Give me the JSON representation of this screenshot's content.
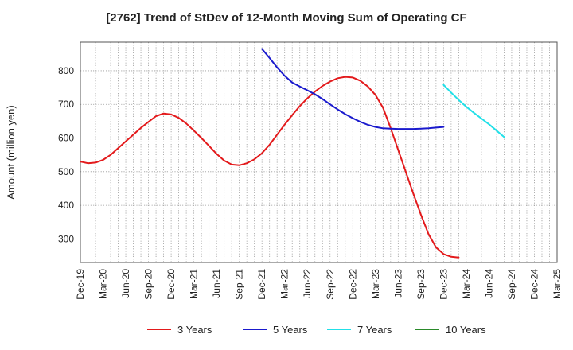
{
  "chart_data": {
    "type": "line",
    "title": "[2762]  Trend of StDev of 12-Month Moving Sum of Operating CF",
    "ylabel": "Amount (million yen)",
    "xlabel": "",
    "ylim": [
      230,
      885
    ],
    "yticks": [
      300,
      400,
      500,
      600,
      700,
      800
    ],
    "grid": true,
    "legend_position": "bottom",
    "x_ticks": [
      "Dec-19",
      "Mar-20",
      "Jun-20",
      "Sep-20",
      "Dec-20",
      "Mar-21",
      "Jun-21",
      "Sep-21",
      "Dec-21",
      "Mar-22",
      "Jun-22",
      "Sep-22",
      "Dec-22",
      "Mar-23",
      "Jun-23",
      "Sep-23",
      "Dec-23",
      "Mar-24",
      "Jun-24",
      "Sep-24",
      "Dec-24",
      "Mar-25"
    ],
    "series": [
      {
        "name": "3 Years",
        "color": "#e31a1c",
        "start_index": 0,
        "values": [
          530,
          525,
          527,
          535,
          550,
          570,
          590,
          610,
          630,
          648,
          665,
          673,
          670,
          660,
          643,
          622,
          600,
          577,
          553,
          533,
          521,
          519,
          525,
          537,
          555,
          580,
          610,
          640,
          668,
          695,
          718,
          738,
          755,
          768,
          778,
          782,
          780,
          770,
          753,
          728,
          690,
          630,
          565,
          500,
          435,
          372,
          315,
          275,
          255,
          247,
          245
        ]
      },
      {
        "name": "5 Years",
        "color": "#1a1acd",
        "start_index": 24,
        "values": [
          865,
          838,
          810,
          785,
          765,
          753,
          742,
          730,
          716,
          700,
          685,
          671,
          659,
          648,
          639,
          633,
          629,
          628,
          627,
          627,
          627,
          628,
          629,
          631,
          633
        ]
      },
      {
        "name": "7 Years",
        "color": "#22e0e8",
        "start_index": 48,
        "values": [
          758,
          735,
          713,
          693,
          675,
          658,
          641,
          622,
          603
        ]
      },
      {
        "name": "10 Years",
        "color": "#2a8a2a",
        "start_index": 0,
        "values": []
      }
    ]
  }
}
